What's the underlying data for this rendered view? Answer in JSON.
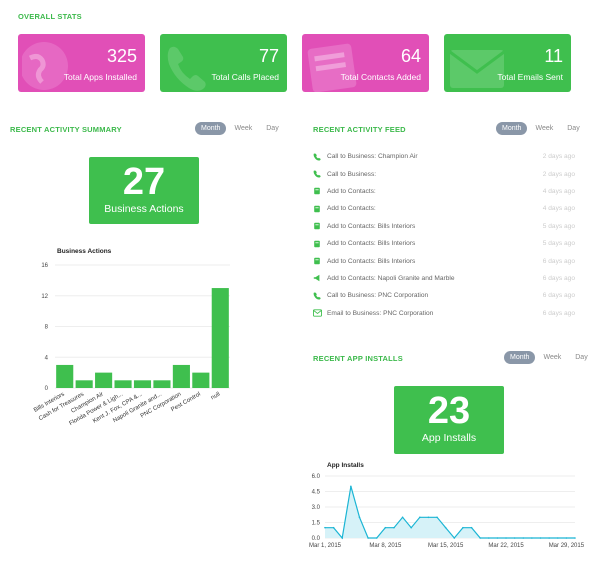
{
  "overall": {
    "title": "OVERALL STATS",
    "cards": [
      {
        "value": "325",
        "label": "Total Apps Installed",
        "color": "#e14fb7",
        "icon": "globe-icon"
      },
      {
        "value": "77",
        "label": "Total Calls Placed",
        "color": "#3fbf4e",
        "icon": "phone-icon"
      },
      {
        "value": "64",
        "label": "Total Contacts Added",
        "color": "#e14fb7",
        "icon": "contacts-book-icon"
      },
      {
        "value": "11",
        "label": "Total Emails Sent",
        "color": "#3fbf4e",
        "icon": "envelope-icon"
      }
    ]
  },
  "summary": {
    "title": "RECENT ACTIVITY SUMMARY",
    "tabs": [
      "Month",
      "Week",
      "Day"
    ],
    "active_tab": "Month",
    "big_number": "27",
    "big_label": "Business Actions"
  },
  "feed": {
    "title": "RECENT ACTIVITY FEED",
    "tabs": [
      "Month",
      "Week",
      "Day"
    ],
    "items": [
      {
        "icon": "phone-icon",
        "text": "Call to Business: Champion Air",
        "time": "2 days ago"
      },
      {
        "icon": "phone-icon",
        "text": "Call to Business:",
        "time": "2 days ago"
      },
      {
        "icon": "contacts-book-icon",
        "text": "Add to Contacts:",
        "time": "4 days ago"
      },
      {
        "icon": "contacts-book-icon",
        "text": "Add to Contacts:",
        "time": "4 days ago"
      },
      {
        "icon": "contacts-book-icon",
        "text": "Add to Contacts: Bills Interiors",
        "time": "5 days ago"
      },
      {
        "icon": "contacts-book-icon",
        "text": "Add to Contacts: Bills Interiors",
        "time": "5 days ago"
      },
      {
        "icon": "contacts-book-icon",
        "text": "Add to Contacts: Bills Interiors",
        "time": "6 days ago"
      },
      {
        "icon": "megaphone-icon",
        "text": "Add to Contacts: Napoli Granite and Marble",
        "time": "6 days ago"
      },
      {
        "icon": "phone-icon",
        "text": "Call to Business: PNC Corporation",
        "time": "6 days ago"
      },
      {
        "icon": "envelope-icon",
        "text": "Email to Business: PNC Corporation",
        "time": "6 days ago"
      }
    ]
  },
  "installs": {
    "title": "RECENT APP INSTALLS",
    "tabs": [
      "Month",
      "Week",
      "Day"
    ],
    "big_number": "23",
    "big_label": "App Installs"
  },
  "colors": {
    "accent": "#3cb94b",
    "pink": "#e14fb7",
    "line": "#1bb5d4"
  },
  "chart_data": [
    {
      "type": "bar",
      "title": "Business Actions",
      "categories": [
        "Bills Interiors",
        "Cash for Treasures",
        "Champion Air",
        "Florida Power & Ligh...",
        "Kent J. Fox, CPA &...",
        "Napoli Granite and...",
        "PNC Corporation",
        "Pest Control",
        "null"
      ],
      "values": [
        3,
        1,
        2,
        1,
        1,
        1,
        3,
        2,
        13
      ],
      "yticks": [
        "0",
        "4",
        "8",
        "12",
        "16"
      ],
      "ylim": [
        0,
        16
      ],
      "color": "#3fbf4e"
    },
    {
      "type": "area",
      "title": "App Installs",
      "x": [
        "Mar 1",
        "Mar 2",
        "Mar 3",
        "Mar 4",
        "Mar 5",
        "Mar 6",
        "Mar 7",
        "Mar 8",
        "Mar 9",
        "Mar 10",
        "Mar 11",
        "Mar 12",
        "Mar 13",
        "Mar 14",
        "Mar 15",
        "Mar 16",
        "Mar 17",
        "Mar 18",
        "Mar 19",
        "Mar 20",
        "Mar 21",
        "Mar 22",
        "Mar 23",
        "Mar 24",
        "Mar 25",
        "Mar 26",
        "Mar 27",
        "Mar 28",
        "Mar 29",
        "Mar 30"
      ],
      "values": [
        1,
        1,
        0,
        5,
        2,
        0,
        0,
        1,
        1,
        2,
        1,
        2,
        2,
        2,
        1,
        0,
        1,
        1,
        0,
        0,
        0,
        0,
        0,
        0,
        0,
        0,
        0,
        0,
        0,
        0
      ],
      "xticks": [
        "Mar 1, 2015",
        "Mar 8, 2015",
        "Mar 15, 2015",
        "Mar 22, 2015",
        "Mar 29, 2015"
      ],
      "yticks": [
        "0.0",
        "1.5",
        "3.0",
        "4.5",
        "6.0"
      ],
      "ylim": [
        0,
        6
      ],
      "color": "#1bb5d4"
    }
  ]
}
